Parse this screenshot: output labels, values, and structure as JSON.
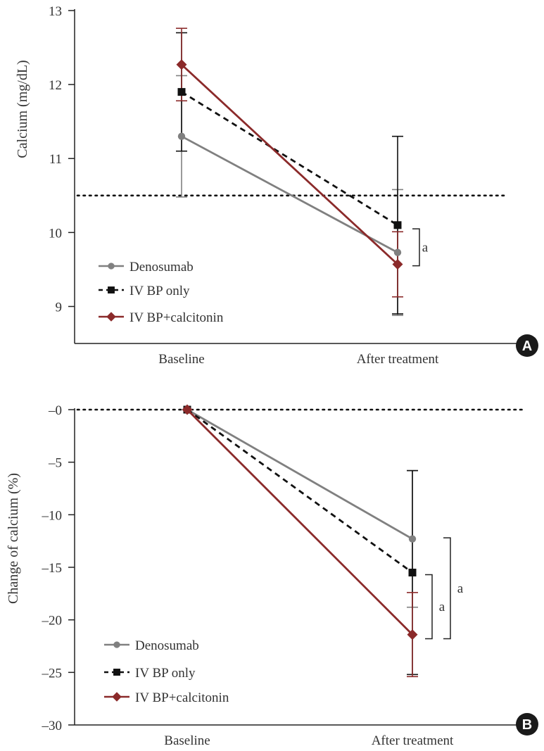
{
  "colors": {
    "denosumab": "#808080",
    "iv_bp_only": "#111111",
    "iv_bp_calcitonin": "#8b2a2a",
    "axis": "#222222",
    "badge": "#1a1a1a"
  },
  "chart_data": [
    {
      "type": "line",
      "panel_label": "A",
      "title": "",
      "xlabel": "",
      "ylabel": "Calcium (mg/dL)",
      "categories": [
        "Baseline",
        "After treatment"
      ],
      "ylim": [
        8.5,
        13
      ],
      "yticks": [
        9,
        10,
        11,
        12,
        13
      ],
      "ytick_labels": [
        "9",
        "10",
        "11",
        "12",
        "13"
      ],
      "reference_line": 10.5,
      "legend_position": "bottom-left",
      "series": [
        {
          "name": "Denosumab",
          "key": "denosumab",
          "marker": "circle",
          "dash": false,
          "values": [
            11.3,
            9.73
          ],
          "err_low": [
            10.48,
            8.88
          ],
          "err_high": [
            12.12,
            10.58
          ]
        },
        {
          "name": "IV BP only",
          "key": "iv_bp_only",
          "marker": "square",
          "dash": true,
          "values": [
            11.9,
            10.1
          ],
          "err_low": [
            11.1,
            8.9
          ],
          "err_high": [
            12.7,
            11.3
          ]
        },
        {
          "name": "IV BP+calcitonin",
          "key": "iv_bp_calcitonin",
          "marker": "diamond",
          "dash": false,
          "values": [
            12.27,
            9.57
          ],
          "err_low": [
            11.78,
            9.13
          ],
          "err_high": [
            12.76,
            10.01
          ]
        }
      ],
      "annotations": [
        {
          "text": "a",
          "from": 10.05,
          "to": 9.55
        }
      ]
    },
    {
      "type": "line",
      "panel_label": "B",
      "title": "",
      "xlabel": "",
      "ylabel": "Change of calcium (%)",
      "categories": [
        "Baseline",
        "After treatment"
      ],
      "ylim": [
        -30,
        0
      ],
      "yticks": [
        0,
        -5,
        -10,
        -15,
        -20,
        -25,
        -30
      ],
      "ytick_labels": [
        "–0",
        "–5",
        "–10",
        "–15",
        "–20",
        "–25",
        "–30"
      ],
      "reference_line": 0,
      "legend_position": "bottom-left",
      "series": [
        {
          "name": "Denosumab",
          "key": "denosumab",
          "marker": "circle",
          "dash": false,
          "values": [
            0,
            -12.3
          ],
          "err_low": [
            null,
            -18.8
          ],
          "err_high": [
            null,
            -5.8
          ]
        },
        {
          "name": "IV BP only",
          "key": "iv_bp_only",
          "marker": "square",
          "dash": true,
          "values": [
            0,
            -15.5
          ],
          "err_low": [
            null,
            -25.2
          ],
          "err_high": [
            null,
            -5.8
          ]
        },
        {
          "name": "IV BP+calcitonin",
          "key": "iv_bp_calcitonin",
          "marker": "diamond",
          "dash": false,
          "values": [
            0,
            -21.4
          ],
          "err_low": [
            null,
            -25.4
          ],
          "err_high": [
            null,
            -17.4
          ]
        }
      ],
      "annotations": [
        {
          "text": "a",
          "from": -15.7,
          "to": -21.8,
          "offset": 0
        },
        {
          "text": "a",
          "from": -12.2,
          "to": -21.8,
          "offset": 1
        }
      ]
    }
  ]
}
